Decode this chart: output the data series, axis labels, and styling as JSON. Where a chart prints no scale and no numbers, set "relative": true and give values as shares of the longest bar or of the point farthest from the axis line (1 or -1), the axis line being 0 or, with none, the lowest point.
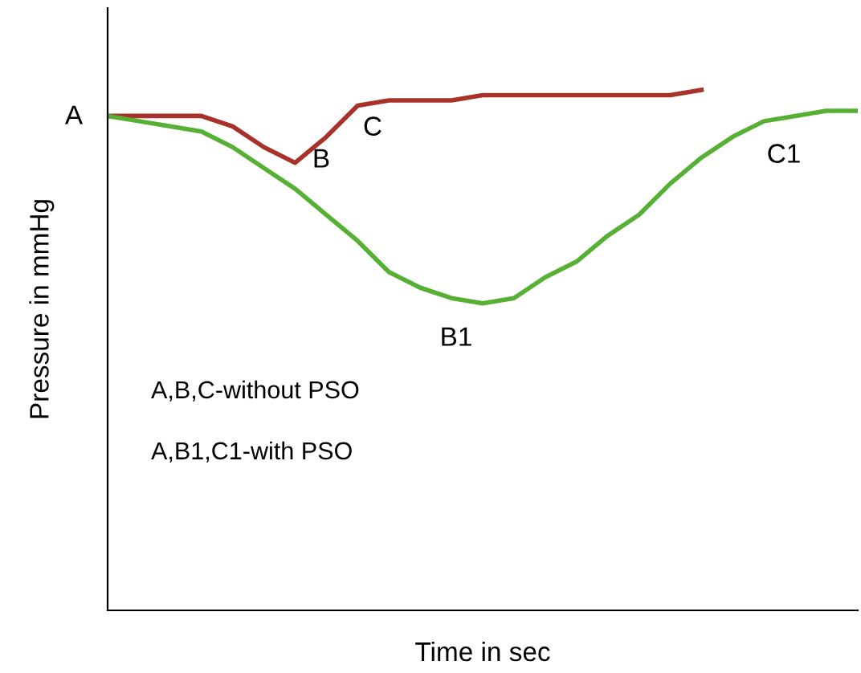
{
  "chart_data": {
    "type": "line",
    "relative": true,
    "xlabel": "Time in sec",
    "ylabel": "Pressure in mmHg",
    "tick_labels": false,
    "categories": [
      null,
      null,
      null,
      null,
      null,
      null,
      null,
      null,
      null,
      null,
      null,
      null,
      null,
      null,
      null,
      null,
      null,
      null,
      null,
      null,
      null,
      null,
      null,
      null,
      null
    ],
    "series": [
      {
        "color": "#a8322a",
        "values": [
          0.95,
          0.95,
          0.95,
          0.95,
          0.93,
          0.89,
          0.86,
          0.91,
          0.97,
          0.98,
          0.98,
          0.98,
          0.99,
          0.99,
          0.99,
          0.99,
          0.99,
          0.99,
          0.99,
          1.0,
          null,
          null,
          null,
          null,
          null
        ]
      },
      {
        "color": "#55b033",
        "values": [
          0.95,
          0.94,
          0.93,
          0.92,
          0.89,
          0.85,
          0.81,
          0.76,
          0.71,
          0.65,
          0.62,
          0.6,
          0.59,
          0.6,
          0.64,
          0.67,
          0.72,
          0.76,
          0.82,
          0.87,
          0.91,
          0.94,
          0.95,
          0.96,
          0.96
        ]
      }
    ],
    "annotations": [
      "A",
      "B",
      "C",
      "C1",
      "B1",
      "A,B,C-without PSO",
      "A,B1,C1-with PSO"
    ]
  }
}
